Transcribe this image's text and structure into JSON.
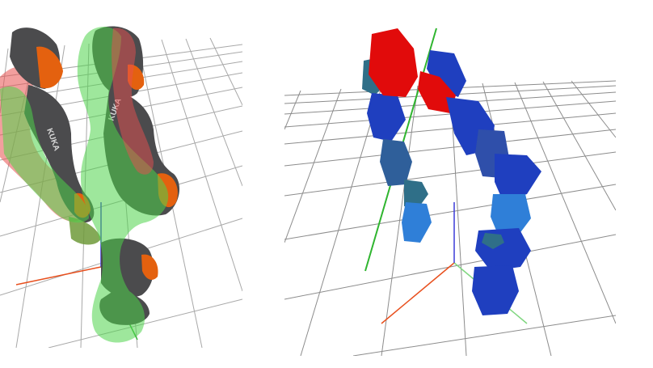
{
  "scene": {
    "left_view": {
      "robot_logo_text": "KUKA",
      "colors": {
        "robot_orange": "#e4610f",
        "robot_dark": "#4b4b4d",
        "overlay_green": "#4fd34a",
        "overlay_red": "#e8504f",
        "grid": "#9a9a9a",
        "axis_x": "#e8501e",
        "axis_y": "#3ab53a",
        "axis_z": "#3a3ad8"
      }
    },
    "right_view": {
      "colors": {
        "hull_red": "#e10b0b",
        "hull_blue": "#1f3fbf",
        "hull_light_blue": "#2f7fd8",
        "hull_teal": "#2f6f88",
        "grid": "#8c8c8c",
        "axis_line_green": "#2fb52f",
        "axis_x": "#e8501e",
        "axis_y": "#7fd67f",
        "axis_z": "#3a3ad8"
      }
    }
  }
}
